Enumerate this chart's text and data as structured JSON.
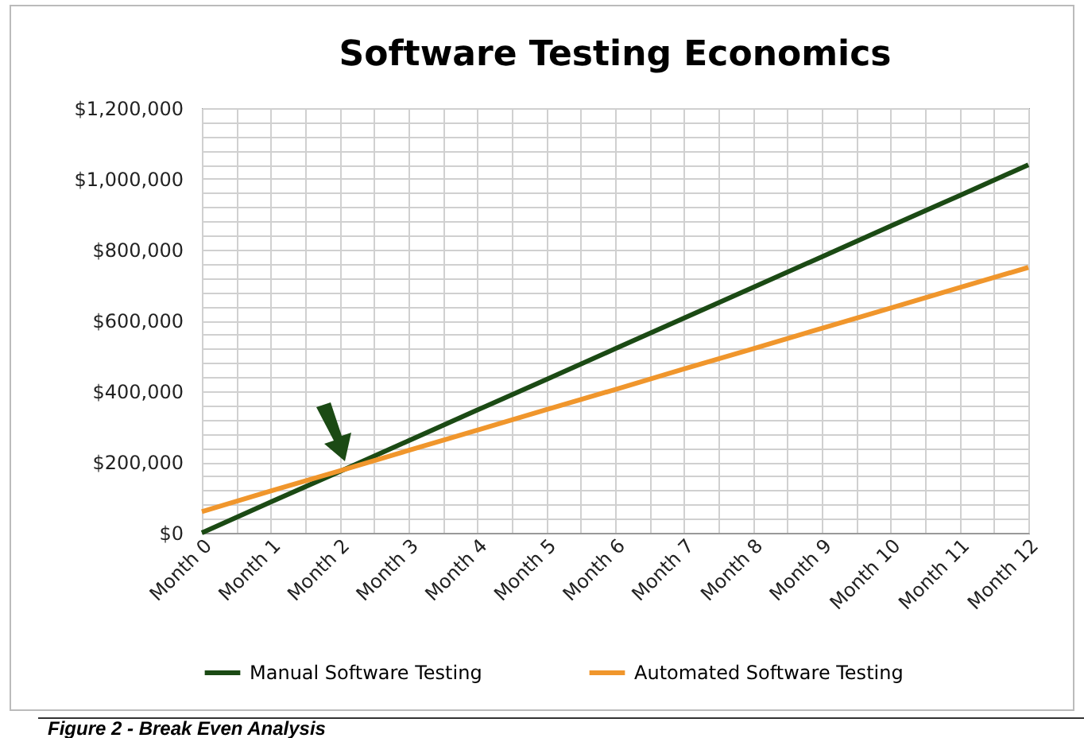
{
  "chart_data": {
    "type": "line",
    "title": "Software Testing Economics",
    "categories": [
      "Month 0",
      "Month 1",
      "Month 2",
      "Month 3",
      "Month 4",
      "Month 5",
      "Month 6",
      "Month 7",
      "Month 8",
      "Month 9",
      "Month 10",
      "Month 11",
      "Month 12"
    ],
    "series": [
      {
        "name": "Manual Software Testing",
        "color": "#1b4a14",
        "values": [
          0,
          87000,
          173000,
          260000,
          347000,
          433000,
          520000,
          607000,
          693000,
          780000,
          867000,
          953000,
          1040000
        ]
      },
      {
        "name": "Automated Software Testing",
        "color": "#f0962c",
        "values": [
          60000,
          118000,
          175000,
          233000,
          290000,
          348000,
          405000,
          463000,
          520000,
          578000,
          635000,
          693000,
          750000
        ]
      }
    ],
    "ylim": [
      0,
      1200000
    ],
    "yticks": [
      {
        "value": 0,
        "label": "$0"
      },
      {
        "value": 200000,
        "label": "$200,000"
      },
      {
        "value": 400000,
        "label": "$400,000"
      },
      {
        "value": 600000,
        "label": "$600,000"
      },
      {
        "value": 800000,
        "label": "$800,000"
      },
      {
        "value": 1000000,
        "label": "$1,000,000"
      },
      {
        "value": 1200000,
        "label": "$1,200,000"
      }
    ],
    "grid": true,
    "legend": "bottom",
    "marker": "none",
    "line_style": "solid",
    "annotations": [
      "Figure 2 - Break Even Analysis"
    ]
  }
}
